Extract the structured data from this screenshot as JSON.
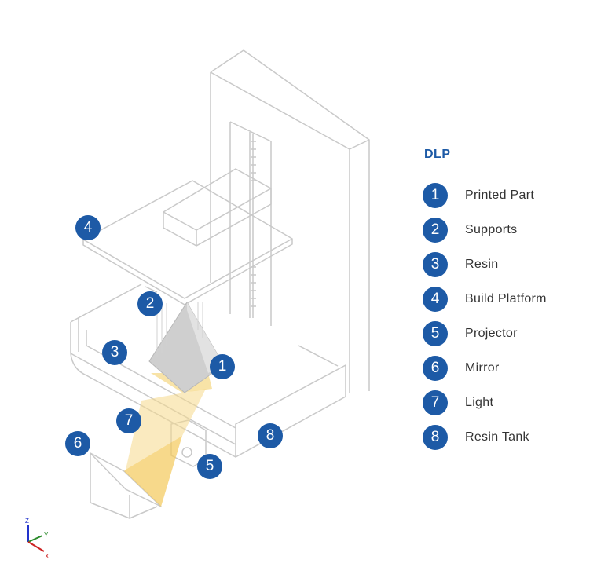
{
  "title": "DLP",
  "colors": {
    "accent": "#1d5aa6",
    "outline": "#c9c9c9",
    "light": "#f6d98a",
    "part": "#cfcfcf"
  },
  "legend": [
    {
      "num": "1",
      "label": "Printed Part"
    },
    {
      "num": "2",
      "label": "Supports"
    },
    {
      "num": "3",
      "label": "Resin"
    },
    {
      "num": "4",
      "label": "Build Platform"
    },
    {
      "num": "5",
      "label": "Projector"
    },
    {
      "num": "6",
      "label": "Mirror"
    },
    {
      "num": "7",
      "label": "Light"
    },
    {
      "num": "8",
      "label": "Resin Tank"
    }
  ],
  "callouts": [
    "4",
    "2",
    "3",
    "1",
    "7",
    "8",
    "6",
    "5"
  ],
  "axes": {
    "z": "Z",
    "y": "Y",
    "x": "X"
  }
}
